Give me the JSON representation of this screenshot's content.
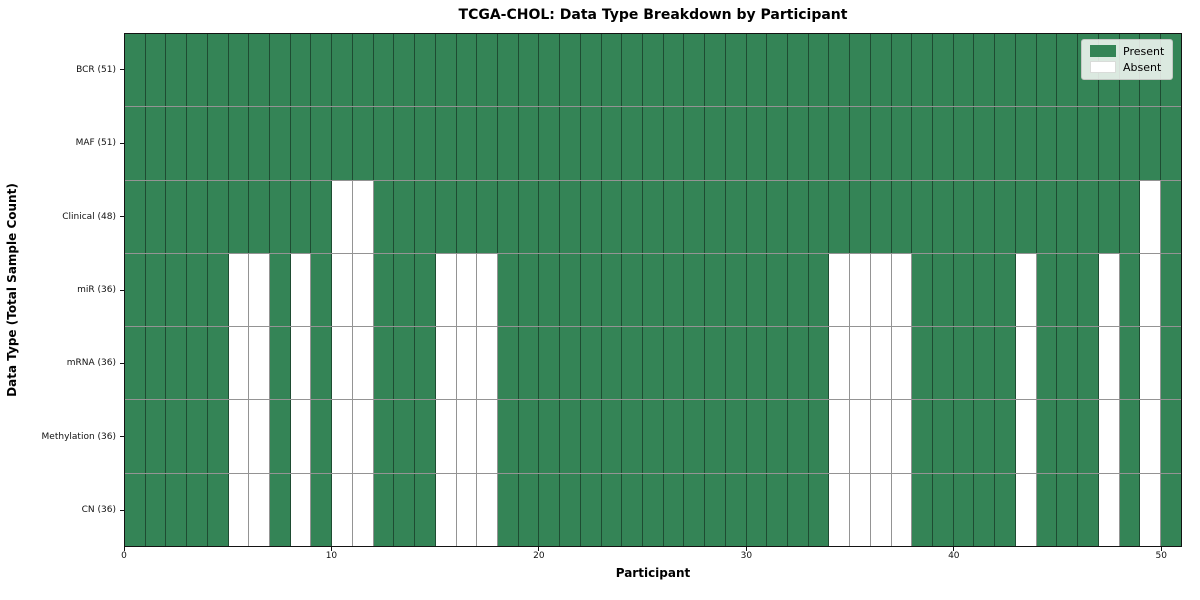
{
  "title": "TCGA-CHOL: Data Type Breakdown by Participant",
  "x_axis": {
    "label": "Participant",
    "tick_labels": [
      "0",
      "10",
      "20",
      "30",
      "40",
      "50"
    ],
    "tick_values": [
      0,
      10,
      20,
      30,
      40,
      50
    ]
  },
  "y_axis": {
    "label": "Data Type (Total Sample Count)"
  },
  "legend": {
    "items": [
      {
        "label": "Present",
        "color": "#348456"
      },
      {
        "label": "Absent",
        "color": "#ffffff"
      }
    ]
  },
  "colors": {
    "present": "#348456",
    "absent": "#ffffff",
    "grid_line": "rgba(0,0,0,0.42)",
    "spine": "#141414"
  },
  "chart_data": {
    "type": "heatmap",
    "title": "TCGA-CHOL: Data Type Breakdown by Participant",
    "xlabel": "Participant",
    "ylabel": "Data Type (Total Sample Count)",
    "n_participants": 51,
    "x_range": [
      0,
      51
    ],
    "x_ticks": [
      0,
      10,
      20,
      30,
      40,
      50
    ],
    "grid": true,
    "legend_position": "upper right",
    "legend_entries": [
      "Present",
      "Absent"
    ],
    "cell_states": [
      "present",
      "absent"
    ],
    "rows": [
      {
        "label": "BCR (51)",
        "data_type": "BCR",
        "present_count": 51,
        "absent_participants": []
      },
      {
        "label": "MAF (51)",
        "data_type": "MAF",
        "present_count": 51,
        "absent_participants": []
      },
      {
        "label": "Clinical (48)",
        "data_type": "Clinical",
        "present_count": 48,
        "absent_participants": [
          10,
          11,
          49
        ]
      },
      {
        "label": "miR (36)",
        "data_type": "miR",
        "present_count": 36,
        "absent_participants": [
          5,
          6,
          8,
          10,
          11,
          15,
          16,
          17,
          34,
          35,
          36,
          37,
          43,
          47,
          49
        ]
      },
      {
        "label": "mRNA (36)",
        "data_type": "mRNA",
        "present_count": 36,
        "absent_participants": [
          5,
          6,
          8,
          10,
          11,
          15,
          16,
          17,
          34,
          35,
          36,
          37,
          43,
          47,
          49
        ]
      },
      {
        "label": "Methylation (36)",
        "data_type": "Methylation",
        "present_count": 36,
        "absent_participants": [
          5,
          6,
          8,
          10,
          11,
          15,
          16,
          17,
          34,
          35,
          36,
          37,
          43,
          47,
          49
        ]
      },
      {
        "label": "CN (36)",
        "data_type": "CN",
        "present_count": 36,
        "absent_participants": [
          5,
          6,
          8,
          10,
          11,
          15,
          16,
          17,
          34,
          35,
          36,
          37,
          43,
          47,
          49
        ]
      }
    ]
  }
}
